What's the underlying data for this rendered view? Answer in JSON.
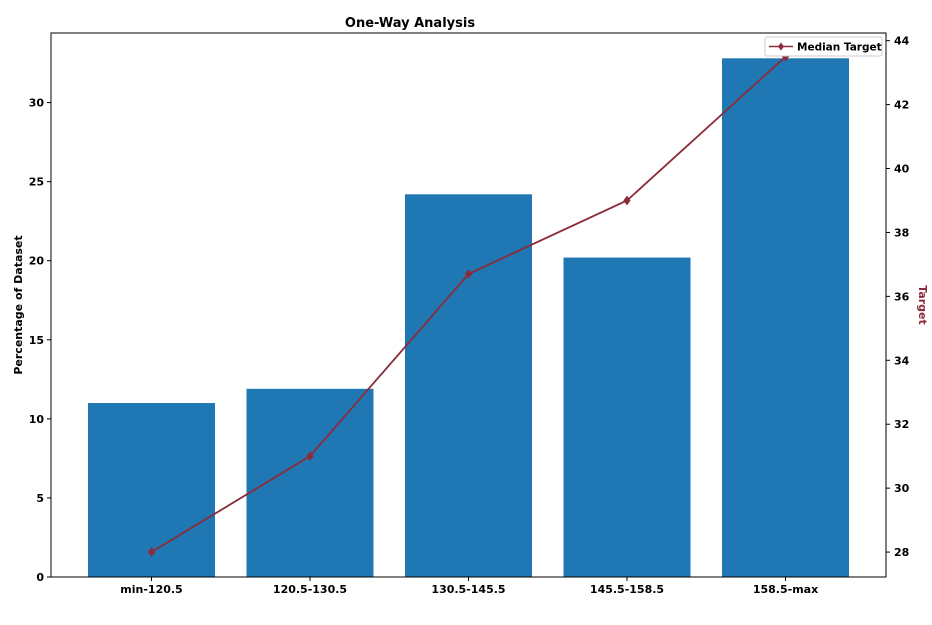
{
  "chart_data": {
    "type": "bar",
    "title": "One-Way Analysis",
    "categories": [
      "min-120.5",
      "120.5-130.5",
      "130.5-145.5",
      "145.5-158.5",
      "158.5-max"
    ],
    "series": [
      {
        "axis": "left",
        "kind": "bar",
        "color": "#1f77b4",
        "values": [
          11.0,
          11.9,
          24.2,
          20.2,
          32.8
        ]
      },
      {
        "name": "Median Target",
        "axis": "right",
        "kind": "line",
        "marker": "diamond",
        "color": "#8b2c3a",
        "values": [
          28.0,
          31.0,
          36.7,
          39.0,
          43.5
        ]
      }
    ],
    "ylabel": "Percentage of Dataset",
    "ylim": [
      0,
      34.4
    ],
    "yticks": [
      0,
      5,
      10,
      15,
      20,
      25,
      30
    ],
    "y2label": "Target",
    "y2label_color": "#8b2c3a",
    "y2lim": [
      27.22,
      44.24
    ],
    "y2ticks": [
      28,
      30,
      32,
      34,
      36,
      38,
      40,
      42,
      44
    ],
    "legend": "top-right",
    "grid": false
  }
}
